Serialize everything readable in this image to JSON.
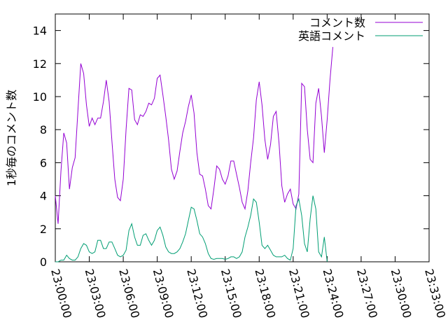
{
  "chart_data": {
    "type": "line",
    "ylabel": "1秒毎のコメント数",
    "xlabel": "",
    "title": "",
    "ylim": [
      0,
      15
    ],
    "xlim": [
      "23:00:00",
      "23:33:00"
    ],
    "yticks": [
      0,
      2,
      4,
      6,
      8,
      10,
      12,
      14
    ],
    "xticks": [
      "23:00:00",
      "23:03:00",
      "23:06:00",
      "23:09:00",
      "23:12:00",
      "23:15:00",
      "23:18:00",
      "23:21:00",
      "23:24:00",
      "23:27:00",
      "23:30:00",
      "23:33:00"
    ],
    "legend_position": "top-right",
    "grid": false,
    "series": [
      {
        "name": "コメント数",
        "color": "#9400d3",
        "points": [
          [
            "23:00:00",
            4.0
          ],
          [
            "23:00:15",
            2.3
          ],
          [
            "23:00:30",
            5.5
          ],
          [
            "23:00:45",
            7.8
          ],
          [
            "23:01:00",
            7.2
          ],
          [
            "23:01:15",
            4.4
          ],
          [
            "23:01:30",
            5.7
          ],
          [
            "23:01:45",
            6.3
          ],
          [
            "23:02:00",
            9.2
          ],
          [
            "23:02:15",
            12.0
          ],
          [
            "23:02:30",
            11.4
          ],
          [
            "23:02:45",
            9.5
          ],
          [
            "23:03:00",
            8.2
          ],
          [
            "23:03:15",
            8.7
          ],
          [
            "23:03:30",
            8.3
          ],
          [
            "23:03:45",
            8.7
          ],
          [
            "23:04:00",
            8.7
          ],
          [
            "23:04:15",
            9.7
          ],
          [
            "23:04:30",
            11.0
          ],
          [
            "23:04:45",
            9.7
          ],
          [
            "23:05:00",
            7.3
          ],
          [
            "23:05:15",
            5.0
          ],
          [
            "23:05:30",
            3.9
          ],
          [
            "23:05:45",
            3.7
          ],
          [
            "23:06:00",
            5.0
          ],
          [
            "23:06:15",
            8.0
          ],
          [
            "23:06:30",
            10.5
          ],
          [
            "23:06:45",
            10.4
          ],
          [
            "23:07:00",
            8.6
          ],
          [
            "23:07:15",
            8.3
          ],
          [
            "23:07:30",
            8.9
          ],
          [
            "23:07:45",
            8.8
          ],
          [
            "23:08:00",
            9.1
          ],
          [
            "23:08:15",
            9.6
          ],
          [
            "23:08:30",
            9.5
          ],
          [
            "23:08:45",
            9.9
          ],
          [
            "23:09:00",
            11.1
          ],
          [
            "23:09:15",
            11.3
          ],
          [
            "23:09:30",
            10.1
          ],
          [
            "23:09:45",
            8.8
          ],
          [
            "23:10:00",
            7.4
          ],
          [
            "23:10:15",
            5.6
          ],
          [
            "23:10:30",
            5.0
          ],
          [
            "23:10:45",
            5.5
          ],
          [
            "23:11:00",
            6.7
          ],
          [
            "23:11:15",
            7.8
          ],
          [
            "23:11:30",
            8.5
          ],
          [
            "23:11:45",
            9.4
          ],
          [
            "23:12:00",
            10.1
          ],
          [
            "23:12:15",
            9.0
          ],
          [
            "23:12:30",
            6.6
          ],
          [
            "23:12:45",
            5.3
          ],
          [
            "23:13:00",
            5.2
          ],
          [
            "23:13:15",
            4.4
          ],
          [
            "23:13:30",
            3.4
          ],
          [
            "23:13:45",
            3.2
          ],
          [
            "23:14:00",
            4.4
          ],
          [
            "23:14:15",
            5.8
          ],
          [
            "23:14:30",
            5.6
          ],
          [
            "23:14:45",
            5.0
          ],
          [
            "23:15:00",
            4.7
          ],
          [
            "23:15:15",
            5.2
          ],
          [
            "23:15:30",
            6.1
          ],
          [
            "23:15:45",
            6.1
          ],
          [
            "23:16:00",
            5.3
          ],
          [
            "23:16:15",
            4.5
          ],
          [
            "23:16:30",
            3.6
          ],
          [
            "23:16:45",
            3.2
          ],
          [
            "23:17:00",
            4.3
          ],
          [
            "23:17:15",
            6.0
          ],
          [
            "23:17:30",
            7.5
          ],
          [
            "23:17:45",
            9.8
          ],
          [
            "23:18:00",
            10.9
          ],
          [
            "23:18:15",
            9.5
          ],
          [
            "23:18:30",
            7.4
          ],
          [
            "23:18:45",
            6.2
          ],
          [
            "23:19:00",
            7.1
          ],
          [
            "23:19:15",
            8.8
          ],
          [
            "23:19:30",
            9.1
          ],
          [
            "23:19:45",
            7.2
          ],
          [
            "23:20:00",
            4.6
          ],
          [
            "23:20:15",
            3.6
          ],
          [
            "23:20:30",
            4.1
          ],
          [
            "23:20:45",
            4.4
          ],
          [
            "23:21:00",
            3.5
          ],
          [
            "23:21:15",
            3.2
          ],
          [
            "23:21:30",
            4.1
          ],
          [
            "23:21:45",
            10.8
          ],
          [
            "23:22:00",
            10.6
          ],
          [
            "23:22:15",
            8.0
          ],
          [
            "23:22:30",
            6.2
          ],
          [
            "23:22:45",
            6.0
          ],
          [
            "23:23:00",
            9.6
          ],
          [
            "23:23:15",
            10.5
          ],
          [
            "23:23:30",
            8.8
          ],
          [
            "23:23:45",
            6.6
          ],
          [
            "23:24:00",
            8.6
          ],
          [
            "23:24:15",
            11.0
          ],
          [
            "23:24:30",
            13.0
          ]
        ]
      },
      {
        "name": "英語コメント",
        "color": "#009e73",
        "points": [
          [
            "23:00:00",
            0.0
          ],
          [
            "23:00:15",
            0.0
          ],
          [
            "23:00:30",
            0.1
          ],
          [
            "23:00:45",
            0.1
          ],
          [
            "23:01:00",
            0.4
          ],
          [
            "23:01:15",
            0.2
          ],
          [
            "23:01:30",
            0.1
          ],
          [
            "23:01:45",
            0.1
          ],
          [
            "23:02:00",
            0.3
          ],
          [
            "23:02:15",
            0.8
          ],
          [
            "23:02:30",
            1.1
          ],
          [
            "23:02:45",
            1.0
          ],
          [
            "23:03:00",
            0.6
          ],
          [
            "23:03:15",
            0.5
          ],
          [
            "23:03:30",
            0.6
          ],
          [
            "23:03:45",
            1.3
          ],
          [
            "23:04:00",
            1.3
          ],
          [
            "23:04:15",
            0.8
          ],
          [
            "23:04:30",
            0.8
          ],
          [
            "23:04:45",
            1.2
          ],
          [
            "23:05:00",
            1.2
          ],
          [
            "23:05:15",
            0.8
          ],
          [
            "23:05:30",
            0.4
          ],
          [
            "23:05:45",
            0.3
          ],
          [
            "23:06:00",
            0.4
          ],
          [
            "23:06:15",
            0.7
          ],
          [
            "23:06:30",
            1.9
          ],
          [
            "23:06:45",
            2.3
          ],
          [
            "23:07:00",
            1.5
          ],
          [
            "23:07:15",
            1.0
          ],
          [
            "23:07:30",
            1.0
          ],
          [
            "23:07:45",
            1.6
          ],
          [
            "23:08:00",
            1.7
          ],
          [
            "23:08:15",
            1.3
          ],
          [
            "23:08:30",
            1.0
          ],
          [
            "23:08:45",
            1.3
          ],
          [
            "23:09:00",
            1.9
          ],
          [
            "23:09:15",
            2.1
          ],
          [
            "23:09:30",
            1.6
          ],
          [
            "23:09:45",
            0.9
          ],
          [
            "23:10:00",
            0.6
          ],
          [
            "23:10:15",
            0.5
          ],
          [
            "23:10:30",
            0.5
          ],
          [
            "23:10:45",
            0.6
          ],
          [
            "23:11:00",
            0.8
          ],
          [
            "23:11:15",
            1.2
          ],
          [
            "23:11:30",
            1.7
          ],
          [
            "23:11:45",
            2.5
          ],
          [
            "23:12:00",
            3.3
          ],
          [
            "23:12:15",
            3.2
          ],
          [
            "23:12:30",
            2.5
          ],
          [
            "23:12:45",
            1.7
          ],
          [
            "23:13:00",
            1.5
          ],
          [
            "23:13:15",
            1.1
          ],
          [
            "23:13:30",
            0.5
          ],
          [
            "23:13:45",
            0.2
          ],
          [
            "23:14:00",
            0.15
          ],
          [
            "23:14:15",
            0.2
          ],
          [
            "23:14:30",
            0.2
          ],
          [
            "23:14:45",
            0.2
          ],
          [
            "23:15:00",
            0.15
          ],
          [
            "23:15:15",
            0.2
          ],
          [
            "23:15:30",
            0.3
          ],
          [
            "23:15:45",
            0.3
          ],
          [
            "23:16:00",
            0.2
          ],
          [
            "23:16:15",
            0.3
          ],
          [
            "23:16:30",
            0.6
          ],
          [
            "23:16:45",
            1.5
          ],
          [
            "23:17:00",
            2.1
          ],
          [
            "23:17:15",
            2.8
          ],
          [
            "23:17:30",
            3.8
          ],
          [
            "23:17:45",
            3.6
          ],
          [
            "23:18:00",
            2.4
          ],
          [
            "23:18:15",
            1.0
          ],
          [
            "23:18:30",
            0.8
          ],
          [
            "23:18:45",
            1.0
          ],
          [
            "23:19:00",
            0.7
          ],
          [
            "23:19:15",
            0.4
          ],
          [
            "23:19:30",
            0.3
          ],
          [
            "23:19:45",
            0.3
          ],
          [
            "23:20:00",
            0.3
          ],
          [
            "23:20:15",
            0.4
          ],
          [
            "23:20:30",
            0.2
          ],
          [
            "23:20:45",
            0.1
          ],
          [
            "23:21:00",
            0.8
          ],
          [
            "23:21:15",
            3.4
          ],
          [
            "23:21:30",
            3.8
          ],
          [
            "23:21:45",
            2.8
          ],
          [
            "23:22:00",
            1.1
          ],
          [
            "23:22:15",
            0.6
          ],
          [
            "23:22:30",
            2.6
          ],
          [
            "23:22:45",
            4.0
          ],
          [
            "23:23:00",
            3.2
          ],
          [
            "23:23:15",
            0.6
          ],
          [
            "23:23:30",
            0.3
          ],
          [
            "23:23:45",
            1.5
          ],
          [
            "23:24:00",
            0.0
          ]
        ]
      }
    ]
  }
}
